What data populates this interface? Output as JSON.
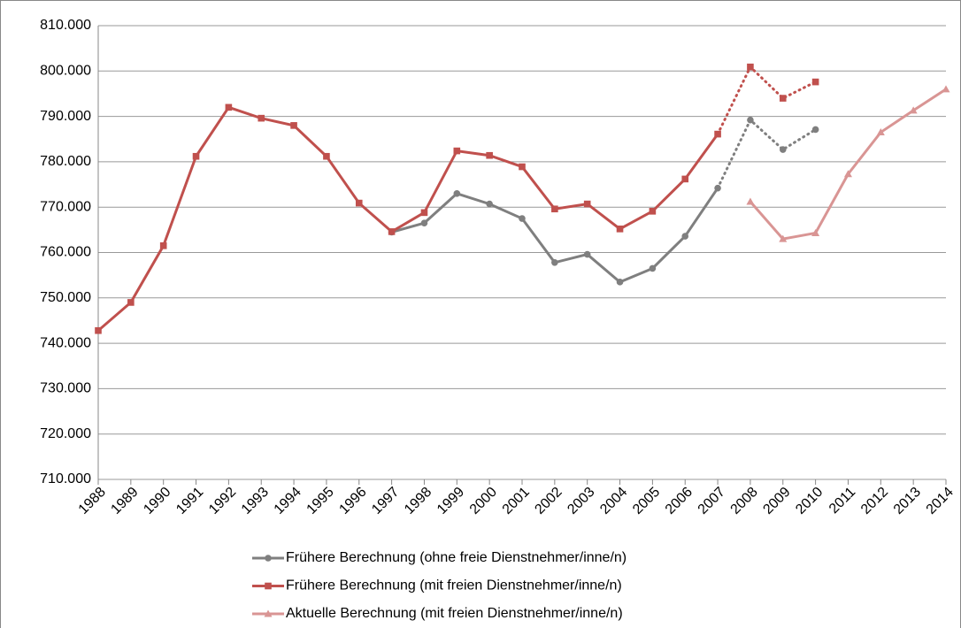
{
  "chart_data": {
    "type": "line",
    "categories": [
      "1988",
      "1989",
      "1990",
      "1991",
      "1992",
      "1993",
      "1994",
      "1995",
      "1996",
      "1997",
      "1998",
      "1999",
      "2000",
      "2001",
      "2002",
      "2003",
      "2004",
      "2005",
      "2006",
      "2007",
      "2008",
      "2009",
      "2010",
      "2011",
      "2012",
      "2013",
      "2014"
    ],
    "series": [
      {
        "name": "Frühere Berechnung (ohne freie Dienstnehmer/inne/n)",
        "color": "#7f7f7f",
        "marker": "circle",
        "dotted_from": "2007",
        "values": [
          null,
          null,
          null,
          null,
          null,
          null,
          null,
          null,
          null,
          764500,
          766500,
          773000,
          770700,
          767500,
          757800,
          759600,
          753500,
          756500,
          763600,
          774200,
          789200,
          782700,
          787100,
          null,
          null,
          null,
          null
        ]
      },
      {
        "name": "Frühere Berechnung (mit freien Dienstnehmer/inne/n)",
        "color": "#c0504d",
        "marker": "square",
        "dotted_from": "2007",
        "values": [
          742800,
          749000,
          761500,
          781200,
          792000,
          789600,
          788000,
          781200,
          770900,
          764600,
          768800,
          782400,
          781400,
          778900,
          769600,
          770700,
          765200,
          769100,
          776200,
          786100,
          800900,
          794000,
          797600,
          null,
          null,
          null,
          null
        ]
      },
      {
        "name": "Aktuelle Berechnung (mit freien Dienstnehmer/inne/n)",
        "color": "#d99594",
        "marker": "triangle",
        "values": [
          null,
          null,
          null,
          null,
          null,
          null,
          null,
          null,
          null,
          null,
          null,
          null,
          null,
          null,
          null,
          null,
          null,
          null,
          null,
          null,
          771200,
          763000,
          764300,
          777300,
          786500,
          791300,
          796000
        ]
      }
    ],
    "ylim": [
      710000,
      810000
    ],
    "yticks": [
      {
        "value": 710000,
        "label": "710.000"
      },
      {
        "value": 720000,
        "label": "720.000"
      },
      {
        "value": 730000,
        "label": "730.000"
      },
      {
        "value": 740000,
        "label": "740.000"
      },
      {
        "value": 750000,
        "label": "750.000"
      },
      {
        "value": 760000,
        "label": "760.000"
      },
      {
        "value": 770000,
        "label": "770.000"
      },
      {
        "value": 780000,
        "label": "780.000"
      },
      {
        "value": 790000,
        "label": "790.000"
      },
      {
        "value": 800000,
        "label": "800.000"
      },
      {
        "value": 810000,
        "label": "810.000"
      }
    ],
    "grid": true,
    "legend": "bottom"
  }
}
